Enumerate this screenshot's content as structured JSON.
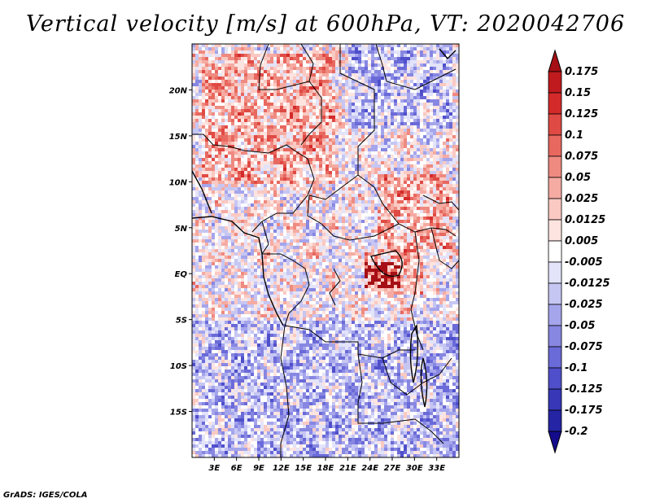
{
  "title": "Vertical velocity [m/s] at 600hPa, VT: 2020042706",
  "credit": "GrADS: IGES/COLA",
  "map": {
    "variable": "Vertical velocity",
    "units": "m/s",
    "level": "600hPa",
    "valid_time": "2020042706",
    "lon_range": [
      0,
      36
    ],
    "lat_range": [
      -20,
      25
    ],
    "lon_ticks": [
      {
        "value": 3,
        "label": "3E"
      },
      {
        "value": 6,
        "label": "6E"
      },
      {
        "value": 9,
        "label": "9E"
      },
      {
        "value": 12,
        "label": "12E"
      },
      {
        "value": 15,
        "label": "15E"
      },
      {
        "value": 18,
        "label": "18E"
      },
      {
        "value": 21,
        "label": "21E"
      },
      {
        "value": 24,
        "label": "24E"
      },
      {
        "value": 27,
        "label": "27E"
      },
      {
        "value": 30,
        "label": "30E"
      },
      {
        "value": 33,
        "label": "33E"
      }
    ],
    "lat_ticks": [
      {
        "value": 20,
        "label": "20N"
      },
      {
        "value": 15,
        "label": "15N"
      },
      {
        "value": 10,
        "label": "10N"
      },
      {
        "value": 5,
        "label": "5N"
      },
      {
        "value": 0,
        "label": "EQ"
      },
      {
        "value": -5,
        "label": "5S"
      },
      {
        "value": -10,
        "label": "10S"
      },
      {
        "value": -15,
        "label": "15S"
      }
    ],
    "regions": [
      {
        "name": "sahara-north-positive",
        "lon": [
          1,
          19
        ],
        "lat": [
          10,
          24
        ],
        "sign": "positive"
      },
      {
        "name": "northeast-negative",
        "lon": [
          21,
          35
        ],
        "lat": [
          16,
          25
        ],
        "sign": "negative"
      },
      {
        "name": "ethiopia-positive",
        "lon": [
          25,
          35
        ],
        "lat": [
          3,
          11
        ],
        "sign": "positive"
      },
      {
        "name": "lake-victoria-strong-positive",
        "lon": [
          23,
          31
        ],
        "lat": [
          -2,
          3
        ],
        "sign": "positive"
      },
      {
        "name": "southern-negative",
        "lon": [
          0,
          36
        ],
        "lat": [
          -20,
          -5
        ],
        "sign": "negative"
      },
      {
        "name": "gulf-of-guinea-mixed",
        "lon": [
          0,
          8
        ],
        "lat": [
          -7,
          5
        ],
        "sign": "mixed"
      }
    ]
  },
  "colorbar": {
    "levels": [
      "0.175",
      "0.15",
      "0.125",
      "0.1",
      "0.075",
      "0.05",
      "0.025",
      "0.0125",
      "0.005",
      "-0.005",
      "-0.0125",
      "-0.025",
      "-0.05",
      "-0.075",
      "-0.1",
      "-0.125",
      "-0.175",
      "-0.2"
    ],
    "colors": [
      "#a50f15",
      "#c01a1e",
      "#d42a2a",
      "#e04a44",
      "#e8685f",
      "#ef8a80",
      "#f5aba2",
      "#fac9c2",
      "#fde4e0",
      "#ffffff",
      "#e3e3fa",
      "#c6c6f3",
      "#a5a5ec",
      "#8787e2",
      "#6a6ad8",
      "#4f4fcb",
      "#3737b8",
      "#2424a4",
      "#140c8c"
    ]
  }
}
